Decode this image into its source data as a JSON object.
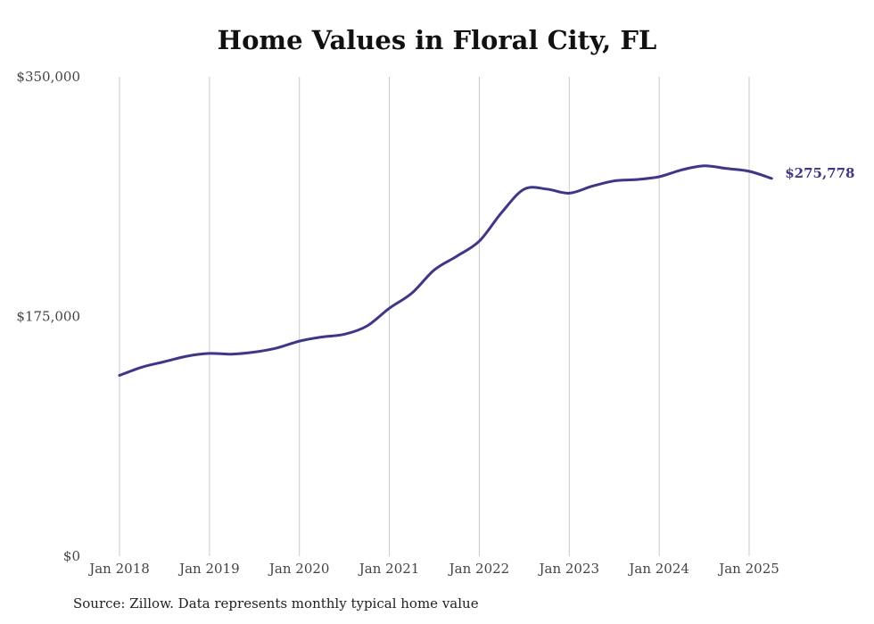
{
  "source_note": "Source: Zillow. Data represents monthly typical home value",
  "chart_data": {
    "type": "line",
    "title": "Home Values in Floral City, FL",
    "xlabel": "",
    "ylabel": "",
    "ylim": [
      0,
      350000
    ],
    "y_ticks": [
      0,
      175000,
      350000
    ],
    "y_tick_labels": [
      "$0",
      "$175,000",
      "$350,000"
    ],
    "x_ticks": [
      "2018-01",
      "2019-01",
      "2020-01",
      "2021-01",
      "2022-01",
      "2023-01",
      "2024-01",
      "2025-01"
    ],
    "x_tick_labels": [
      "Jan 2018",
      "Jan 2019",
      "Jan 2020",
      "Jan 2021",
      "Jan 2022",
      "Jan 2023",
      "Jan 2024",
      "Jan 2025"
    ],
    "grid": "vertical",
    "series_color": "#3c3594",
    "end_label": "$275,778",
    "series": [
      {
        "x": [
          "2018-01",
          "2018-04",
          "2018-07",
          "2018-10",
          "2019-01",
          "2019-04",
          "2019-07",
          "2019-10",
          "2020-01",
          "2020-04",
          "2020-07",
          "2020-10",
          "2021-01",
          "2021-04",
          "2021-07",
          "2021-10",
          "2022-01",
          "2022-04",
          "2022-07",
          "2022-10",
          "2023-01",
          "2023-04",
          "2023-07",
          "2023-10",
          "2024-01",
          "2024-04",
          "2024-07",
          "2024-10",
          "2025-01",
          "2025-04"
        ],
        "y": [
          132000,
          138000,
          142000,
          146000,
          148000,
          147500,
          149000,
          152000,
          157000,
          160000,
          162000,
          168000,
          181000,
          192000,
          209000,
          219000,
          230000,
          251000,
          268000,
          268000,
          265000,
          270000,
          274000,
          275000,
          277000,
          282000,
          285000,
          283000,
          281000,
          275778
        ]
      }
    ]
  }
}
